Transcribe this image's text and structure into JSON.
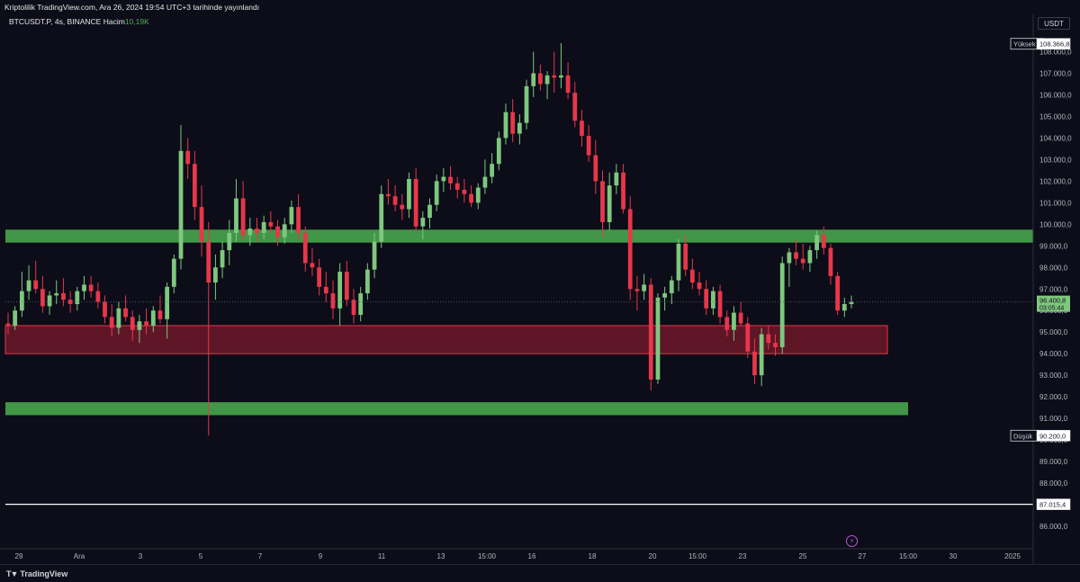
{
  "header": {
    "publisher_text": "Kriptolilik TradingView.com, Ara 26, 2024 19:54 UTC+3 tarihinde yayınlandı"
  },
  "legend": {
    "symbol_text": "BTCUSDT.P, 4s, BINANCE",
    "volume_label": "Hacim",
    "volume_value": "10,19K"
  },
  "currency_badge": "USDT",
  "footer": {
    "brand": "TradingView"
  },
  "colors": {
    "background": "#0c0d18",
    "bull": "#7fc77f",
    "bear": "#e8364a",
    "support_zone": "#4caf50",
    "demand_zone": "#7a1a2c",
    "text": "#b2b5be"
  },
  "chart_data": {
    "type": "candlestick",
    "symbol": "BTCUSDT.P",
    "exchange": "BINANCE",
    "interval": "4s",
    "ylim": [
      85000,
      109000
    ],
    "y_ticks": [
      86000,
      87000,
      88000,
      89000,
      90000,
      91000,
      92000,
      93000,
      94000,
      95000,
      96000,
      97000,
      98000,
      99000,
      100000,
      101000,
      102000,
      103000,
      104000,
      105000,
      106000,
      107000,
      108000
    ],
    "y_tick_labels": [
      "86.000,0",
      "87.000,0",
      "88.000,0",
      "89.000,0",
      "90.000,0",
      "91.000,0",
      "92.000,0",
      "93.000,0",
      "94.000,0",
      "95.000,0",
      "96.000,0",
      "97.000,0",
      "98.000,0",
      "99.000,0",
      "100.000,0",
      "101.000,0",
      "102.000,0",
      "103.000,0",
      "104.000,0",
      "105.000,0",
      "106.000,0",
      "107.000,0",
      "108.000,0"
    ],
    "x_tick_labels": [
      "29",
      "Ara",
      "3",
      "5",
      "7",
      "9",
      "11",
      "13",
      "15:00",
      "16",
      "18",
      "20",
      "15:00",
      "23",
      "25",
      "27",
      "15:00",
      "30",
      "2025"
    ],
    "markers": [
      {
        "label": "Yüksek",
        "value": 108366.8,
        "text": "108.366,8"
      },
      {
        "label": "Düşük",
        "value": 90200.0,
        "text": "90.200,0"
      },
      {
        "label": "",
        "value": 87015.4,
        "text": "87.015,4"
      }
    ],
    "last_price": {
      "value": 96400.8,
      "text": "96.400,8",
      "countdown": "03:05:44"
    },
    "zones": [
      {
        "kind": "resistance",
        "from": 99150,
        "to": 99750,
        "color": "#4caf50"
      },
      {
        "kind": "demand",
        "from": 94000,
        "to": 95300,
        "color": "#7a1a2c"
      },
      {
        "kind": "support",
        "from": 91150,
        "to": 91750,
        "color": "#4caf50"
      }
    ],
    "horizontal_line": 87015.4,
    "ohlc": [
      [
        95400,
        95900,
        94900,
        95300
      ],
      [
        95300,
        96200,
        95100,
        96000
      ],
      [
        96000,
        97800,
        95700,
        96900
      ],
      [
        96900,
        98100,
        96500,
        97400
      ],
      [
        97400,
        98300,
        96800,
        97000
      ],
      [
        97000,
        97600,
        95900,
        96200
      ],
      [
        96200,
        96900,
        95800,
        96700
      ],
      [
        96700,
        97400,
        96300,
        96800
      ],
      [
        96800,
        97500,
        96200,
        96500
      ],
      [
        96500,
        96900,
        95900,
        96300
      ],
      [
        96300,
        97100,
        96000,
        96900
      ],
      [
        96900,
        97600,
        96500,
        97200
      ],
      [
        97200,
        97600,
        96600,
        96900
      ],
      [
        96900,
        97300,
        96100,
        96400
      ],
      [
        96400,
        96700,
        95400,
        95700
      ],
      [
        95700,
        96300,
        94800,
        95200
      ],
      [
        95200,
        96400,
        94900,
        96100
      ],
      [
        96100,
        96700,
        95500,
        95700
      ],
      [
        95700,
        96000,
        94600,
        95100
      ],
      [
        95100,
        95800,
        94500,
        95500
      ],
      [
        95500,
        96100,
        94900,
        95300
      ],
      [
        95300,
        96200,
        95000,
        96000
      ],
      [
        96000,
        96700,
        95400,
        95600
      ],
      [
        95600,
        97300,
        94700,
        97100
      ],
      [
        97100,
        98600,
        96800,
        98400
      ],
      [
        98400,
        104600,
        97900,
        103400
      ],
      [
        103400,
        104000,
        102100,
        102800
      ],
      [
        102800,
        103400,
        100200,
        100800
      ],
      [
        100800,
        101800,
        98500,
        99200
      ],
      [
        99200,
        100100,
        90200,
        97300
      ],
      [
        97300,
        98600,
        96500,
        98000
      ],
      [
        98000,
        99200,
        97500,
        98800
      ],
      [
        98800,
        100200,
        98100,
        99600
      ],
      [
        99600,
        102100,
        99200,
        101200
      ],
      [
        101200,
        102000,
        99300,
        99500
      ],
      [
        99500,
        100300,
        99000,
        99800
      ],
      [
        99800,
        100300,
        99200,
        99600
      ],
      [
        99600,
        100400,
        99300,
        100100
      ],
      [
        100100,
        100600,
        99600,
        99900
      ],
      [
        99900,
        100200,
        99000,
        99400
      ],
      [
        99400,
        100300,
        99100,
        100000
      ],
      [
        100000,
        101100,
        99600,
        100800
      ],
      [
        100800,
        101400,
        99300,
        99600
      ],
      [
        99600,
        99900,
        97800,
        98200
      ],
      [
        98200,
        98900,
        97600,
        98000
      ],
      [
        98000,
        98400,
        96700,
        97100
      ],
      [
        97100,
        97800,
        96400,
        96800
      ],
      [
        96800,
        97400,
        95600,
        96100
      ],
      [
        96100,
        98200,
        95300,
        97800
      ],
      [
        97800,
        98300,
        96200,
        96500
      ],
      [
        96500,
        97000,
        95400,
        95800
      ],
      [
        95800,
        97100,
        95500,
        96800
      ],
      [
        96800,
        98200,
        96500,
        97900
      ],
      [
        97900,
        99600,
        97500,
        99200
      ],
      [
        99200,
        101800,
        98900,
        101400
      ],
      [
        101400,
        102100,
        100900,
        101300
      ],
      [
        101300,
        101800,
        100600,
        100900
      ],
      [
        100900,
        101400,
        100200,
        100700
      ],
      [
        100700,
        102400,
        100300,
        102100
      ],
      [
        102100,
        102600,
        99600,
        99900
      ],
      [
        99900,
        100600,
        99300,
        100300
      ],
      [
        100300,
        101200,
        99800,
        100900
      ],
      [
        100900,
        102300,
        100600,
        102000
      ],
      [
        102000,
        102600,
        101500,
        102200
      ],
      [
        102200,
        102700,
        101600,
        101900
      ],
      [
        101900,
        102200,
        101200,
        101600
      ],
      [
        101600,
        102100,
        101000,
        101400
      ],
      [
        101400,
        101800,
        100800,
        101000
      ],
      [
        101000,
        101900,
        100700,
        101700
      ],
      [
        101700,
        103000,
        101400,
        102200
      ],
      [
        102200,
        103300,
        101900,
        102800
      ],
      [
        102800,
        104300,
        102500,
        104000
      ],
      [
        104000,
        105600,
        103700,
        105200
      ],
      [
        105200,
        105800,
        103800,
        104200
      ],
      [
        104200,
        105100,
        103700,
        104700
      ],
      [
        104700,
        106700,
        104400,
        106400
      ],
      [
        106400,
        108000,
        105900,
        107000
      ],
      [
        107000,
        107400,
        106200,
        106500
      ],
      [
        106500,
        107100,
        105800,
        106900
      ],
      [
        106900,
        108000,
        106100,
        106800
      ],
      [
        106800,
        108400,
        106300,
        106900
      ],
      [
        106900,
        107500,
        105800,
        106100
      ],
      [
        106100,
        106600,
        104500,
        104800
      ],
      [
        104800,
        105300,
        103600,
        104100
      ],
      [
        104100,
        104600,
        102900,
        103200
      ],
      [
        103200,
        103900,
        101400,
        102000
      ],
      [
        102000,
        102500,
        99400,
        100100
      ],
      [
        100100,
        102400,
        99700,
        101800
      ],
      [
        101800,
        102800,
        101400,
        102400
      ],
      [
        102400,
        102800,
        100500,
        100700
      ],
      [
        100700,
        101300,
        96500,
        97000
      ],
      [
        97000,
        97600,
        96000,
        96900
      ],
      [
        96900,
        97700,
        96500,
        97200
      ],
      [
        97200,
        97500,
        92300,
        92800
      ],
      [
        92800,
        96800,
        92600,
        96600
      ],
      [
        96600,
        97100,
        96000,
        96800
      ],
      [
        96800,
        97600,
        96300,
        97400
      ],
      [
        97400,
        99300,
        96900,
        99100
      ],
      [
        99100,
        99500,
        97600,
        97900
      ],
      [
        97900,
        98400,
        97000,
        97300
      ],
      [
        97300,
        97800,
        96700,
        97000
      ],
      [
        97000,
        97400,
        95800,
        96100
      ],
      [
        96100,
        97100,
        95800,
        96900
      ],
      [
        96900,
        97200,
        95400,
        95700
      ],
      [
        95700,
        96000,
        94800,
        95100
      ],
      [
        95100,
        96200,
        94600,
        95900
      ],
      [
        95900,
        96400,
        95300,
        95400
      ],
      [
        95400,
        95700,
        93800,
        94100
      ],
      [
        94100,
        94700,
        92600,
        93000
      ],
      [
        93000,
        95200,
        92500,
        94900
      ],
      [
        94900,
        95300,
        94200,
        94500
      ],
      [
        94500,
        94900,
        93900,
        94300
      ],
      [
        94300,
        98500,
        94000,
        98200
      ],
      [
        98200,
        98900,
        97100,
        98700
      ],
      [
        98700,
        99300,
        98100,
        98400
      ],
      [
        98400,
        99100,
        97900,
        98200
      ],
      [
        98200,
        99000,
        97800,
        98800
      ],
      [
        98800,
        99700,
        98400,
        99500
      ],
      [
        99500,
        99900,
        98600,
        98900
      ],
      [
        98900,
        99100,
        97200,
        97600
      ],
      [
        97600,
        97800,
        95800,
        96000
      ],
      [
        96000,
        96600,
        95700,
        96300
      ],
      [
        96300,
        96700,
        96100,
        96400
      ]
    ]
  }
}
